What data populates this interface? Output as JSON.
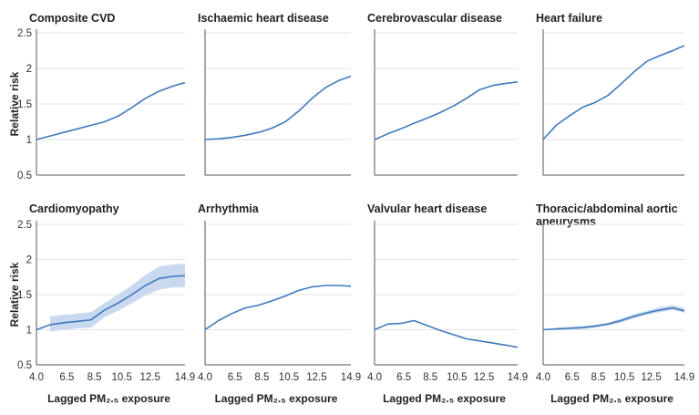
{
  "colors": {
    "line": "#3f79bd",
    "band": "#c9d9f0",
    "grid": "#e3e3e3",
    "axis": "#555555"
  },
  "y_axis_label": "Relative risk",
  "x_axis_label": "Lagged PM₂.₅ exposure",
  "chart_data": [
    {
      "type": "line",
      "title": "Composite CVD",
      "title_lines": [
        "Composite CVD"
      ],
      "xlabel": "",
      "ylabel": "Relative risk",
      "xlim": [
        4.0,
        14.9
      ],
      "ylim": [
        0.5,
        2.5
      ],
      "xticks": [
        "4.0",
        "6.5",
        "8.5",
        "10.5",
        "12.5",
        "14.9"
      ],
      "yticks": [
        "0.5",
        "1",
        "1.5",
        "2",
        "2.5"
      ],
      "x": [
        4.0,
        5.0,
        6.0,
        7.0,
        8.0,
        9.0,
        10.0,
        11.0,
        12.0,
        13.0,
        14.0,
        14.9
      ],
      "y": [
        1.0,
        1.05,
        1.1,
        1.15,
        1.2,
        1.25,
        1.33,
        1.45,
        1.58,
        1.68,
        1.75,
        1.8
      ],
      "band_lo": [],
      "band_hi": []
    },
    {
      "type": "line",
      "title": "Ischaemic heart disease",
      "title_lines": [
        "Ischaemic heart disease"
      ],
      "xlabel": "",
      "ylabel": "",
      "xlim": [
        4.0,
        14.9
      ],
      "ylim": [
        0.5,
        2.5
      ],
      "xticks": [
        "4.0",
        "6.5",
        "8.5",
        "10.5",
        "12.5",
        "14.9"
      ],
      "yticks": [
        "0.5",
        "1",
        "1.5",
        "2",
        "2.5"
      ],
      "x": [
        4.0,
        5.0,
        6.0,
        7.0,
        8.0,
        9.0,
        10.0,
        11.0,
        12.0,
        13.0,
        14.0,
        14.9
      ],
      "y": [
        1.0,
        1.01,
        1.03,
        1.06,
        1.1,
        1.16,
        1.25,
        1.4,
        1.58,
        1.73,
        1.83,
        1.89
      ],
      "band_lo": [],
      "band_hi": []
    },
    {
      "type": "line",
      "title": "Cerebrovascular disease",
      "title_lines": [
        "Cerebrovascular disease"
      ],
      "xlabel": "",
      "ylabel": "",
      "xlim": [
        4.0,
        14.9
      ],
      "ylim": [
        0.5,
        2.5
      ],
      "xticks": [
        "4.0",
        "6.5",
        "8.5",
        "10.5",
        "12.5",
        "14.9"
      ],
      "yticks": [
        "0.5",
        "1",
        "1.5",
        "2",
        "2.5"
      ],
      "x": [
        4.0,
        5.0,
        6.0,
        7.0,
        8.0,
        9.0,
        10.0,
        11.0,
        12.0,
        13.0,
        14.0,
        14.9
      ],
      "y": [
        1.0,
        1.08,
        1.15,
        1.23,
        1.3,
        1.38,
        1.47,
        1.58,
        1.7,
        1.76,
        1.79,
        1.81
      ],
      "band_lo": [],
      "band_hi": []
    },
    {
      "type": "line",
      "title": "Heart failure",
      "title_lines": [
        "Heart failure"
      ],
      "xlabel": "",
      "ylabel": "",
      "xlim": [
        4.0,
        14.9
      ],
      "ylim": [
        0.5,
        2.5
      ],
      "xticks": [
        "4.0",
        "6.5",
        "8.5",
        "10.5",
        "12.5",
        "14.9"
      ],
      "yticks": [
        "0.5",
        "1",
        "1.5",
        "2",
        "2.5"
      ],
      "x": [
        4.0,
        5.0,
        6.0,
        7.0,
        8.0,
        9.0,
        10.0,
        11.0,
        12.0,
        13.0,
        14.0,
        14.9
      ],
      "y": [
        1.0,
        1.2,
        1.33,
        1.45,
        1.52,
        1.62,
        1.78,
        1.95,
        2.1,
        2.18,
        2.25,
        2.32
      ],
      "band_lo": [],
      "band_hi": []
    },
    {
      "type": "line",
      "title": "Cardiomyopathy",
      "title_lines": [
        "Cardiomyopathy"
      ],
      "xlabel": "Lagged PM₂.₅ exposure",
      "ylabel": "Relative risk",
      "xlim": [
        4.0,
        14.9
      ],
      "ylim": [
        0.5,
        2.5
      ],
      "xticks": [
        "4.0",
        "6.5",
        "8.5",
        "10.5",
        "12.5",
        "14.9"
      ],
      "yticks": [
        "0.5",
        "1",
        "1.5",
        "2",
        "2.5"
      ],
      "x": [
        4.0,
        5.0,
        6.0,
        7.0,
        8.0,
        9.0,
        10.0,
        11.0,
        12.0,
        13.0,
        14.0,
        14.9
      ],
      "y": [
        1.0,
        1.07,
        1.1,
        1.12,
        1.14,
        1.28,
        1.38,
        1.5,
        1.63,
        1.73,
        1.76,
        1.77
      ],
      "band_lo": [
        null,
        0.97,
        1.0,
        1.02,
        1.03,
        1.18,
        1.27,
        1.38,
        1.49,
        1.57,
        1.6,
        1.61
      ],
      "band_hi": [
        null,
        1.19,
        1.21,
        1.23,
        1.25,
        1.38,
        1.5,
        1.63,
        1.78,
        1.9,
        1.93,
        1.94
      ]
    },
    {
      "type": "line",
      "title": "Arrhythmia",
      "title_lines": [
        "Arrhythmia"
      ],
      "xlabel": "Lagged PM₂.₅ exposure",
      "ylabel": "",
      "xlim": [
        4.0,
        14.9
      ],
      "ylim": [
        0.5,
        2.5
      ],
      "xticks": [
        "4.0",
        "6.5",
        "8.5",
        "10.5",
        "12.5",
        "14.9"
      ],
      "yticks": [
        "0.5",
        "1",
        "1.5",
        "2",
        "2.5"
      ],
      "x": [
        4.0,
        5.0,
        6.0,
        7.0,
        8.0,
        9.0,
        10.0,
        11.0,
        12.0,
        13.0,
        14.0,
        14.9
      ],
      "y": [
        1.0,
        1.13,
        1.23,
        1.31,
        1.35,
        1.41,
        1.48,
        1.56,
        1.61,
        1.63,
        1.63,
        1.62
      ],
      "band_lo": [],
      "band_hi": []
    },
    {
      "type": "line",
      "title": "Valvular heart disease",
      "title_lines": [
        "Valvular heart disease"
      ],
      "xlabel": "Lagged PM₂.₅ exposure",
      "ylabel": "",
      "xlim": [
        4.0,
        14.9
      ],
      "ylim": [
        0.5,
        2.5
      ],
      "xticks": [
        "4.0",
        "6.5",
        "8.5",
        "10.5",
        "12.5",
        "14.9"
      ],
      "yticks": [
        "0.5",
        "1",
        "1.5",
        "2",
        "2.5"
      ],
      "x": [
        4.0,
        5.0,
        6.0,
        7.0,
        8.0,
        9.0,
        10.0,
        11.0,
        12.0,
        13.0,
        14.0,
        14.9
      ],
      "y": [
        1.0,
        1.08,
        1.09,
        1.13,
        1.06,
        0.99,
        0.93,
        0.87,
        0.84,
        0.81,
        0.78,
        0.75
      ],
      "band_lo": [],
      "band_hi": []
    },
    {
      "type": "line",
      "title": "Thoracic/abdominal aortic aneurysms",
      "title_lines": [
        "Thoracic/abdominal aortic",
        "aneurysms"
      ],
      "xlabel": "Lagged PM₂.₅ exposure",
      "ylabel": "",
      "xlim": [
        4.0,
        14.9
      ],
      "ylim": [
        0.5,
        2.5
      ],
      "xticks": [
        "4.0",
        "6.5",
        "8.5",
        "10.5",
        "12.5",
        "14.9"
      ],
      "yticks": [
        "0.5",
        "1",
        "1.5",
        "2",
        "2.5"
      ],
      "x": [
        4.0,
        5.0,
        6.0,
        7.0,
        8.0,
        9.0,
        10.0,
        11.0,
        12.0,
        13.0,
        14.0,
        14.9
      ],
      "y": [
        1.0,
        1.01,
        1.02,
        1.03,
        1.05,
        1.08,
        1.13,
        1.19,
        1.24,
        1.28,
        1.31,
        1.27
      ],
      "band_lo": [
        null,
        0.99,
        1.0,
        1.01,
        1.03,
        1.06,
        1.1,
        1.16,
        1.21,
        1.25,
        1.28,
        1.24
      ],
      "band_hi": [
        null,
        1.03,
        1.04,
        1.05,
        1.07,
        1.1,
        1.16,
        1.22,
        1.27,
        1.32,
        1.35,
        1.31
      ]
    }
  ]
}
